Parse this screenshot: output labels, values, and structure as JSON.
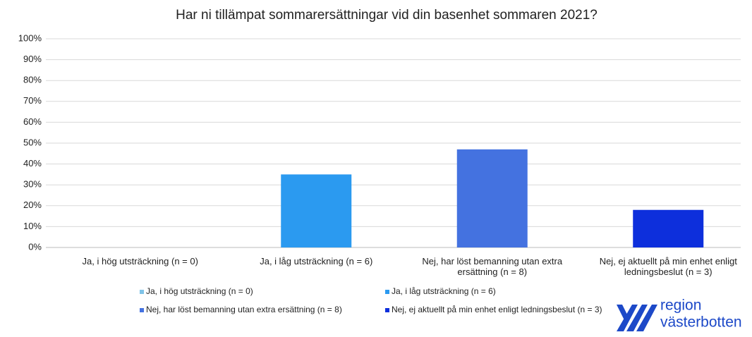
{
  "chart_data": {
    "type": "bar",
    "title": "Har ni tillämpat sommarersättningar vid din basenhet sommaren 2021?",
    "categories": [
      "Ja, i hög utsträckning (n = 0)",
      "Ja, i låg utsträckning (n = 6)",
      "Nej, har löst bemanning utan extra ersättning (n = 8)",
      "Nej, ej aktuellt på min enhet enligt ledningsbeslut (n = 3)"
    ],
    "values": [
      0,
      35,
      47,
      18
    ],
    "colors": [
      "#7fc3e8",
      "#2b9af0",
      "#4472e0",
      "#0d2fdc"
    ],
    "ylim": [
      0,
      100
    ],
    "yticks": [
      {
        "value": 0,
        "label": "0%"
      },
      {
        "value": 10,
        "label": "10%"
      },
      {
        "value": 20,
        "label": "20%"
      },
      {
        "value": 30,
        "label": "30%"
      },
      {
        "value": 40,
        "label": "40%"
      },
      {
        "value": 50,
        "label": "50%"
      },
      {
        "value": 60,
        "label": "60%"
      },
      {
        "value": 70,
        "label": "70%"
      },
      {
        "value": 80,
        "label": "80%"
      },
      {
        "value": 90,
        "label": "90%"
      },
      {
        "value": 100,
        "label": "100%"
      }
    ],
    "grid": true
  },
  "logo": {
    "line1": "region",
    "line2": "västerbotten"
  }
}
